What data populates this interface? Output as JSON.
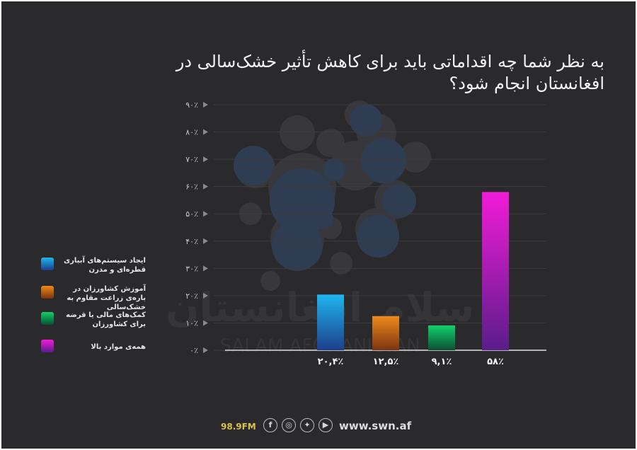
{
  "title": "به نظر شما چه اقداماتی باید برای کاهش تأثیر خشک‌سالی در افغانستان انجام شود؟",
  "watermark": {
    "arabic": "سلام افغانستان",
    "latin": "SALAM AFGHANISTAN"
  },
  "colors": {
    "background": "#2a2a2d",
    "text": "#f2f2f2",
    "gridline": "#3c3c3f",
    "accent": "#d9c24a"
  },
  "chart_data": {
    "type": "bar",
    "categories": [
      "ایجاد سیستم‌های آبیاری قطره‌ای و مدرن",
      "آموزش کشاورزان در باره‌ی زراعت مقاوم به خشک‌سالی",
      "کمک‌های مالی یا قرضه برای کشاورزان",
      "همه‌ی موارد بالا"
    ],
    "values": [
      20.4,
      12.5,
      9.1,
      58
    ],
    "value_labels": [
      "۲۰,۴٪",
      "۱۲,۵٪",
      "۹,۱٪",
      "۵۸٪"
    ],
    "colors": [
      {
        "top": "#1fb6ef",
        "bottom": "#1d3f8a"
      },
      {
        "top": "#f08a1c",
        "bottom": "#7a3410"
      },
      {
        "top": "#12d06a",
        "bottom": "#0b4f33"
      },
      {
        "top": "#f21bd8",
        "bottom": "#5a1d8a"
      }
    ],
    "ylim": [
      0,
      90
    ],
    "yticks": [
      0,
      10,
      20,
      30,
      40,
      50,
      60,
      70,
      80,
      90
    ],
    "ytick_labels": [
      "۰٪",
      "۱۰٪",
      "۲۰٪",
      "۳۰٪",
      "۴۰٪",
      "۵۰٪",
      "۶۰٪",
      "۷۰٪",
      "۸۰٪",
      "۹۰٪"
    ],
    "legend_position": "left",
    "grid": true
  },
  "legend": [
    {
      "label": "ایجاد سیستم‌های آبیاری قطره‌ای و مدرن"
    },
    {
      "label": "آموزش کشاورزان در باره‌ی زراعت مقاوم به خشک‌سالی"
    },
    {
      "label": "کمک‌های مالی یا قرضه برای کشاورزان"
    },
    {
      "label": "همه‌ی موارد بالا"
    }
  ],
  "footer": {
    "station": "98.9FM",
    "socials": [
      {
        "icon": "facebook-icon",
        "glyph": "f"
      },
      {
        "icon": "instagram-icon",
        "glyph": "◎"
      },
      {
        "icon": "twitter-icon",
        "glyph": "✦"
      },
      {
        "icon": "youtube-icon",
        "glyph": "▶"
      }
    ],
    "website": "www.swn.af"
  }
}
